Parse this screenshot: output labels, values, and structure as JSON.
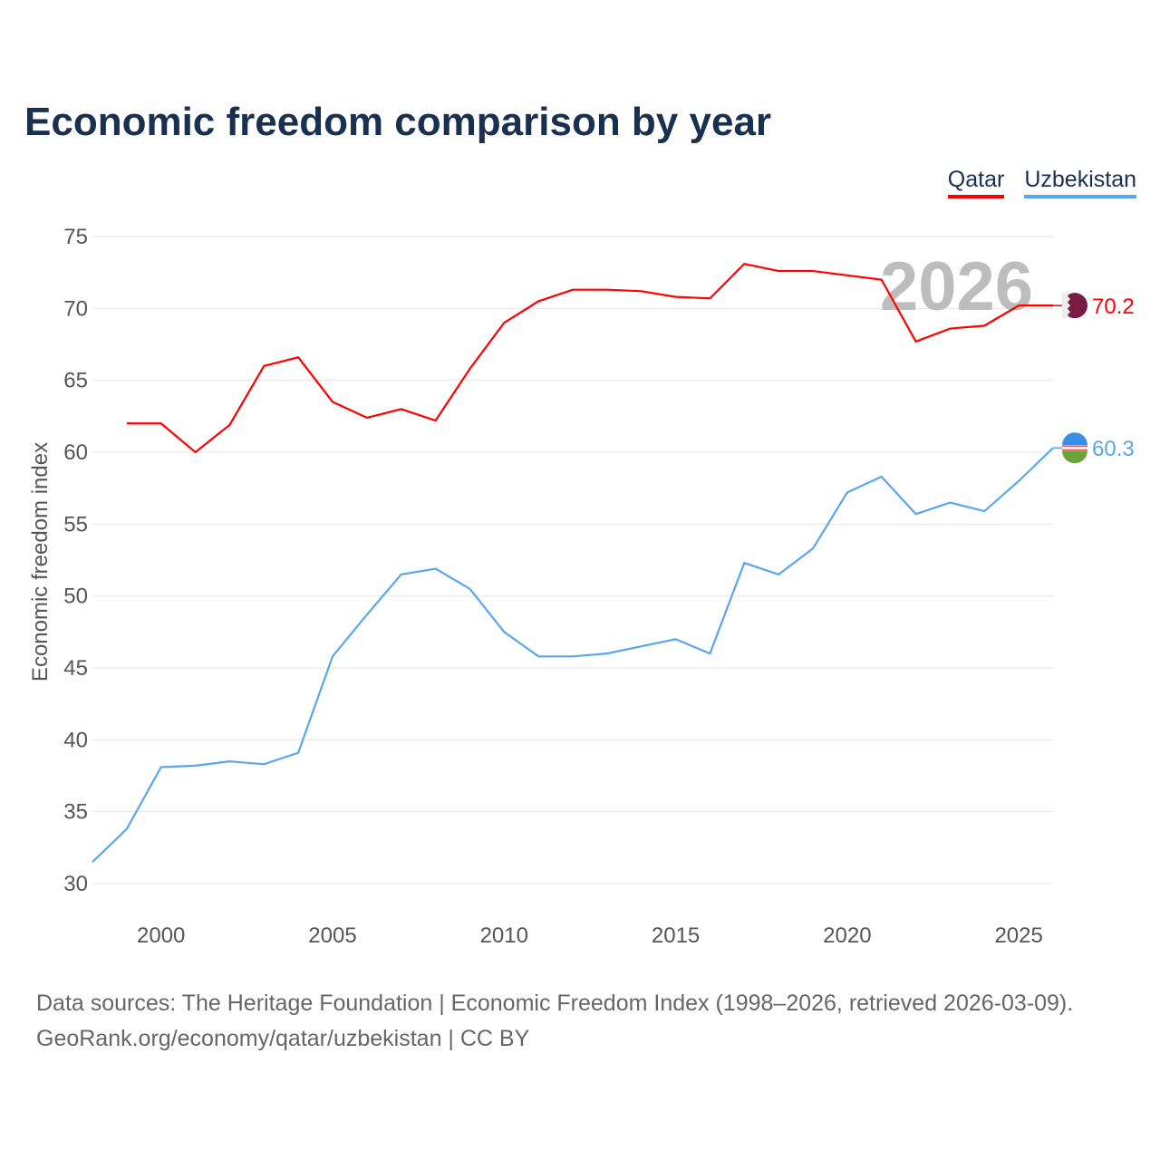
{
  "title": "Economic freedom comparison by year",
  "year_watermark": "2026",
  "footer": {
    "line1": "Data sources: The Heritage Foundation | Economic Freedom Index (1998–2026, retrieved 2026-03-09).",
    "line2": "GeoRank.org/economy/qatar/uzbekistan | CC BY"
  },
  "chart_data": {
    "type": "line",
    "title": "Economic freedom comparison by year",
    "xlabel": "",
    "ylabel": "Economic freedom index",
    "xlim": [
      1998,
      2026
    ],
    "ylim": [
      30,
      75
    ],
    "yticks": [
      30,
      35,
      40,
      45,
      50,
      55,
      60,
      65,
      70,
      75
    ],
    "xticks": [
      2000,
      2005,
      2010,
      2015,
      2020,
      2025
    ],
    "grid": true,
    "legend_position": "top-right",
    "series": [
      {
        "name": "Qatar",
        "color": "#ff0000",
        "end_label": "70.2",
        "flag": "qatar-flag",
        "x": [
          1999,
          2000,
          2001,
          2002,
          2003,
          2004,
          2005,
          2006,
          2007,
          2008,
          2009,
          2010,
          2011,
          2012,
          2013,
          2014,
          2015,
          2016,
          2017,
          2018,
          2019,
          2020,
          2021,
          2022,
          2023,
          2024,
          2025,
          2026
        ],
        "values": [
          62.0,
          62.0,
          60.0,
          61.9,
          66.0,
          66.6,
          63.5,
          62.4,
          63.0,
          62.2,
          65.8,
          69.0,
          70.5,
          71.3,
          71.3,
          71.2,
          70.8,
          70.7,
          73.1,
          72.6,
          72.6,
          72.3,
          72.0,
          67.7,
          68.6,
          68.8,
          70.2,
          70.2
        ]
      },
      {
        "name": "Uzbekistan",
        "color": "#5aa6ec",
        "end_label": "60.3",
        "flag": "uzbekistan-flag",
        "x": [
          1998,
          1999,
          2000,
          2001,
          2002,
          2003,
          2004,
          2005,
          2006,
          2007,
          2008,
          2009,
          2010,
          2011,
          2012,
          2013,
          2014,
          2015,
          2016,
          2017,
          2018,
          2019,
          2020,
          2021,
          2022,
          2023,
          2024,
          2025,
          2026
        ],
        "values": [
          31.5,
          33.8,
          38.1,
          38.2,
          38.5,
          38.3,
          39.1,
          45.8,
          48.7,
          51.5,
          51.9,
          50.5,
          47.5,
          45.8,
          45.8,
          46.0,
          46.5,
          47.0,
          46.0,
          52.3,
          51.5,
          53.3,
          57.2,
          58.3,
          55.7,
          56.5,
          55.9,
          58.0,
          60.3
        ]
      }
    ]
  }
}
